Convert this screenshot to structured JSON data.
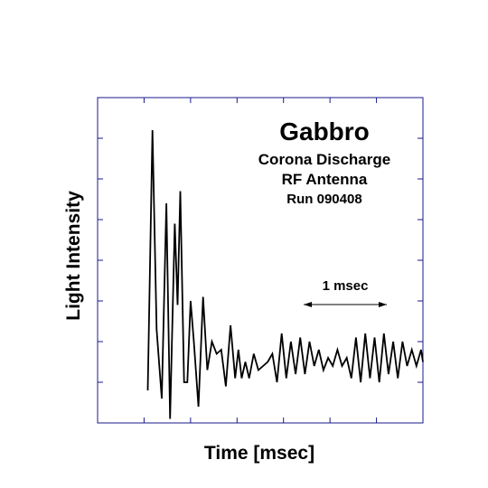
{
  "chart_data": {
    "type": "line",
    "title": "Gabbro",
    "annotations": [
      "Corona Discharge",
      "RF Antenna",
      "Run 090408"
    ],
    "xlabel": "Time [msec]",
    "ylabel": "Light Intensity",
    "scale_bar": {
      "label": "1 msec",
      "length": 1.0
    },
    "xlim": [
      0,
      7
    ],
    "ylim": [
      0,
      8
    ],
    "x_ticks": [
      1,
      2,
      3,
      4,
      5,
      6
    ],
    "y_ticks": [
      1,
      2,
      3,
      4,
      5,
      6,
      7
    ],
    "grid": false,
    "series": [
      {
        "name": "Light Intensity",
        "x": [
          1.08,
          1.18,
          1.27,
          1.38,
          1.48,
          1.56,
          1.66,
          1.72,
          1.78,
          1.86,
          1.93,
          2.0,
          2.07,
          2.17,
          2.27,
          2.36,
          2.46,
          2.56,
          2.66,
          2.76,
          2.86,
          2.96,
          3.03,
          3.1,
          3.18,
          3.26,
          3.36,
          3.46,
          3.56,
          3.66,
          3.76,
          3.86,
          3.96,
          4.06,
          4.16,
          4.26,
          4.36,
          4.46,
          4.56,
          4.66,
          4.76,
          4.86,
          4.96,
          5.06,
          5.16,
          5.26,
          5.36,
          5.46,
          5.56,
          5.66,
          5.76,
          5.86,
          5.96,
          6.06,
          6.16,
          6.26,
          6.36,
          6.46,
          6.56,
          6.66,
          6.76,
          6.86,
          6.96,
          7.0
        ],
        "values": [
          0.8,
          7.2,
          2.3,
          0.6,
          5.4,
          0.1,
          4.9,
          2.9,
          5.7,
          1.0,
          1.0,
          3.0,
          2.0,
          0.4,
          3.1,
          1.3,
          2.0,
          1.7,
          1.8,
          0.9,
          2.4,
          1.1,
          1.8,
          1.1,
          1.5,
          1.1,
          1.7,
          1.3,
          1.4,
          1.5,
          1.7,
          1.0,
          2.2,
          1.1,
          2.0,
          1.2,
          2.1,
          1.2,
          2.0,
          1.4,
          1.8,
          1.3,
          1.6,
          1.4,
          1.8,
          1.4,
          1.6,
          1.1,
          2.1,
          1.0,
          2.2,
          1.1,
          2.1,
          1.0,
          2.2,
          1.2,
          2.0,
          1.1,
          2.0,
          1.4,
          1.8,
          1.4,
          1.8,
          1.5
        ]
      }
    ]
  }
}
